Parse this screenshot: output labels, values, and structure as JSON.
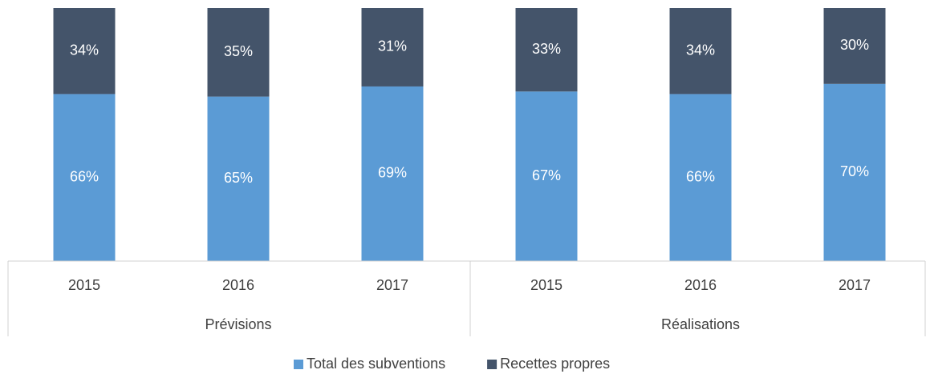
{
  "chart_data": {
    "type": "stacked_bar",
    "groups": [
      {
        "name": "Prévisions",
        "categories": [
          "2015",
          "2016",
          "2017"
        ]
      },
      {
        "name": "Réalisations",
        "categories": [
          "2015",
          "2016",
          "2017"
        ]
      }
    ],
    "series": [
      {
        "name": "Total des subventions",
        "color": "#5b9bd5",
        "values": [
          66,
          65,
          69,
          67,
          66,
          70
        ],
        "value_labels": [
          "66%",
          "65%",
          "69%",
          "67%",
          "66%",
          "70%"
        ]
      },
      {
        "name": "Recettes propres",
        "color": "#44546a",
        "values": [
          34,
          35,
          31,
          33,
          34,
          30
        ],
        "value_labels": [
          "34%",
          "35%",
          "31%",
          "33%",
          "34%",
          "30%"
        ]
      }
    ],
    "ylim": [
      0,
      100
    ]
  }
}
